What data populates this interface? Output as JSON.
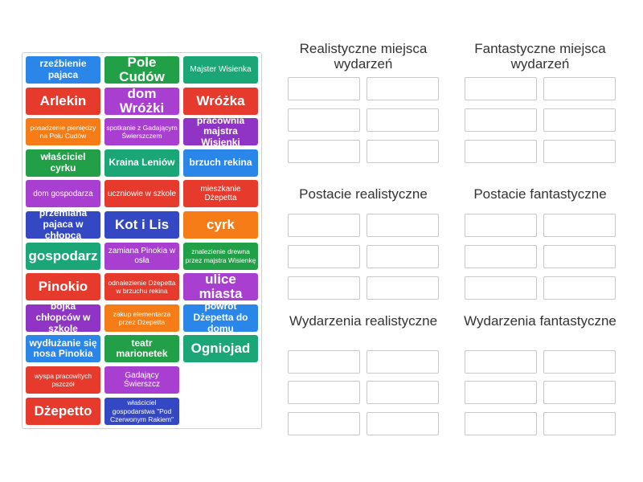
{
  "colors": {
    "blue": "#2a86e8",
    "green": "#21a047",
    "teal": "#1aa676",
    "red": "#e53a2c",
    "purple": "#8f34c4",
    "orange": "#f57c17",
    "indigo": "#3448c4",
    "violet": "#a83fd1"
  },
  "tiles": [
    {
      "text": "rzeźbienie pajaca",
      "color": "blue",
      "size": "m"
    },
    {
      "text": "Pole Cudów",
      "color": "green",
      "size": "l"
    },
    {
      "text": "Majster Wisienka",
      "color": "teal",
      "size": "s"
    },
    {
      "text": "Arlekin",
      "color": "red",
      "size": "l"
    },
    {
      "text": "dom Wróżki",
      "color": "violet",
      "size": "l"
    },
    {
      "text": "Wróżka",
      "color": "red",
      "size": "l"
    },
    {
      "text": "posadzenie pieniędzy na Polu Cudów",
      "color": "orange",
      "size": "xs"
    },
    {
      "text": "spotkanie z Gadającym Świerszczem",
      "color": "violet",
      "size": "xs"
    },
    {
      "text": "pracownia majstra Wisienki",
      "color": "purple",
      "size": "m"
    },
    {
      "text": "właściciel cyrku",
      "color": "green",
      "size": "m"
    },
    {
      "text": "Kraina Leniów",
      "color": "teal",
      "size": "m"
    },
    {
      "text": "brzuch rekina",
      "color": "blue",
      "size": "m"
    },
    {
      "text": "dom gospodarza",
      "color": "violet",
      "size": "s"
    },
    {
      "text": "uczniowie w szkole",
      "color": "red",
      "size": "s"
    },
    {
      "text": "mieszkanie Dżepetta",
      "color": "red",
      "size": "s"
    },
    {
      "text": "przemiana pajaca w chłopca",
      "color": "indigo",
      "size": "m"
    },
    {
      "text": "Kot i Lis",
      "color": "indigo",
      "size": "l"
    },
    {
      "text": "cyrk",
      "color": "orange",
      "size": "l"
    },
    {
      "text": "gospodarz",
      "color": "teal",
      "size": "l"
    },
    {
      "text": "zamiana Pinokia w osła",
      "color": "violet",
      "size": "s"
    },
    {
      "text": "znalezienie drewna przez majstra Wisienkę",
      "color": "green",
      "size": "xs"
    },
    {
      "text": "Pinokio",
      "color": "red",
      "size": "l"
    },
    {
      "text": "odnalezienie Dżepetta w brzuchu rekina",
      "color": "red",
      "size": "xs"
    },
    {
      "text": "ulice miasta",
      "color": "violet",
      "size": "l"
    },
    {
      "text": "bójka chłopców w szkole",
      "color": "purple",
      "size": "m"
    },
    {
      "text": "zakup elementarza przez Dżepetta",
      "color": "orange",
      "size": "xs"
    },
    {
      "text": "powrót Dżepetta do domu",
      "color": "blue",
      "size": "m"
    },
    {
      "text": "wydłużanie się nosa Pinokia",
      "color": "blue",
      "size": "m"
    },
    {
      "text": "teatr marionetek",
      "color": "green",
      "size": "m"
    },
    {
      "text": "Ogniojad",
      "color": "teal",
      "size": "l"
    },
    {
      "text": "wyspa pracowitych pszczół",
      "color": "red",
      "size": "xs"
    },
    {
      "text": "Gadający Świerszcz",
      "color": "violet",
      "size": "s"
    },
    null,
    {
      "text": "Dżepetto",
      "color": "red",
      "size": "l"
    },
    {
      "text": "właściciel gospodarstwa \"Pod Czerwonym Rakiem\"",
      "color": "indigo",
      "size": "xs"
    }
  ],
  "groups": [
    {
      "title": "Realistyczne miejsca wydarzeń"
    },
    {
      "title": "Fantastyczne miejsca wydarzeń"
    },
    {
      "title": "Postacie realistyczne"
    },
    {
      "title": "Postacie fantastyczne"
    },
    {
      "title": "Wydarzenia realistyczne"
    },
    {
      "title": "Wydarzenia fantastyczne"
    }
  ]
}
